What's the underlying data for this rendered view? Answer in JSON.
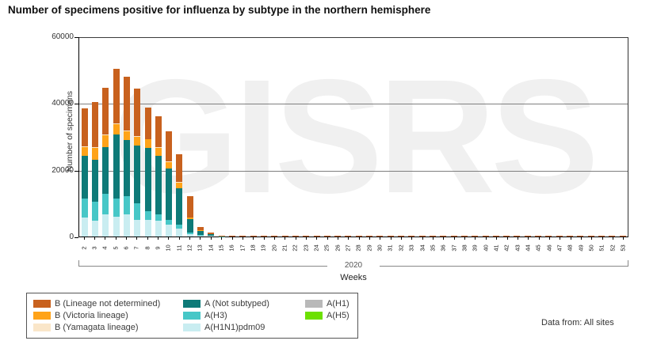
{
  "title": "Number of specimens positive for influenza by subtype in the northern hemisphere",
  "watermark": "GISRS",
  "footer_note": "Data from: All sites",
  "y_axis": {
    "label": "Number of specimens",
    "ticks": [
      0,
      20000,
      40000,
      60000
    ]
  },
  "x_axis": {
    "year": "2020",
    "axis_label": "Weeks"
  },
  "legend": [
    {
      "label": "B (Lineage not determined)",
      "color": "#C8611E",
      "texture": "solid"
    },
    {
      "label": "B (Victoria lineage)",
      "color": "#FFA319",
      "texture": "solid"
    },
    {
      "label": "B (Yamagata lineage)",
      "color": "#FAE6C9",
      "texture": "solid"
    },
    {
      "label": "A (Not subtyped)",
      "color": "#0E7A78",
      "texture": "solid"
    },
    {
      "label": "A(H3)",
      "color": "#47C7C7",
      "texture": "solid"
    },
    {
      "label": "A(H1N1)pdm09",
      "color": "#C9EDF1",
      "texture": "solid"
    },
    {
      "label": "A(H1)",
      "color": "#B9B9B9",
      "texture": "dotted"
    },
    {
      "label": "A(H5)",
      "color": "#6CE000",
      "texture": "solid"
    }
  ],
  "chart_data": {
    "type": "bar",
    "stacked": true,
    "title": "Number of specimens positive for influenza by subtype in the northern hemisphere",
    "xlabel": "Weeks",
    "ylabel": "Number of specimens",
    "ylim": [
      0,
      60000
    ],
    "yticks": [
      0,
      20000,
      40000,
      60000
    ],
    "grid": true,
    "legend_position": "bottom-left",
    "categories": [
      2,
      3,
      4,
      5,
      6,
      7,
      8,
      9,
      10,
      11,
      12,
      13,
      14,
      15,
      16,
      17,
      18,
      19,
      20,
      21,
      22,
      23,
      24,
      25,
      26,
      27,
      28,
      29,
      30,
      31,
      32,
      33,
      34,
      35,
      36,
      37,
      38,
      39,
      40,
      41,
      42,
      43,
      44,
      45,
      46,
      47,
      48,
      49,
      50,
      51,
      52,
      53
    ],
    "series": [
      {
        "name": "A(H1N1)pdm09",
        "color": "#C9EDF1",
        "values": [
          5800,
          4800,
          6700,
          6000,
          6600,
          5100,
          5100,
          4700,
          3600,
          2300,
          650,
          300,
          150,
          30,
          20,
          10,
          10,
          0,
          0,
          0,
          0,
          0,
          0,
          0,
          0,
          0,
          0,
          0,
          0,
          0,
          0,
          0,
          0,
          0,
          0,
          0,
          0,
          0,
          0,
          0,
          0,
          0,
          0,
          0,
          0,
          0,
          0,
          0,
          0,
          0,
          0,
          0
        ]
      },
      {
        "name": "A(H3)",
        "color": "#47C7C7",
        "values": [
          5700,
          5700,
          6000,
          5300,
          5400,
          4800,
          2500,
          2000,
          1400,
          1200,
          450,
          100,
          50,
          10,
          10,
          0,
          0,
          0,
          0,
          0,
          0,
          0,
          0,
          0,
          0,
          0,
          0,
          0,
          0,
          0,
          0,
          0,
          0,
          0,
          0,
          0,
          0,
          0,
          0,
          0,
          0,
          0,
          0,
          0,
          0,
          0,
          0,
          0,
          0,
          0,
          0,
          0
        ]
      },
      {
        "name": "A (Not subtyped)",
        "color": "#0E7A78",
        "values": [
          12600,
          12600,
          14200,
          19400,
          16900,
          17400,
          19000,
          17500,
          15400,
          10900,
          4200,
          1350,
          450,
          110,
          50,
          30,
          20,
          10,
          10,
          0,
          0,
          0,
          0,
          0,
          0,
          0,
          0,
          0,
          0,
          0,
          0,
          0,
          0,
          0,
          0,
          0,
          0,
          0,
          0,
          0,
          0,
          0,
          0,
          0,
          0,
          0,
          0,
          0,
          0,
          0,
          0,
          0
        ]
      },
      {
        "name": "A(H1)",
        "color": "#B9B9B9",
        "values": [
          0,
          0,
          0,
          0,
          0,
          0,
          0,
          0,
          0,
          0,
          0,
          0,
          0,
          0,
          0,
          0,
          0,
          0,
          0,
          0,
          0,
          0,
          0,
          0,
          0,
          0,
          0,
          0,
          0,
          0,
          0,
          0,
          0,
          0,
          0,
          0,
          0,
          0,
          0,
          0,
          0,
          0,
          0,
          0,
          0,
          0,
          0,
          0,
          0,
          0,
          0,
          0
        ]
      },
      {
        "name": "A(H5)",
        "color": "#6CE000",
        "values": [
          0,
          0,
          0,
          0,
          0,
          0,
          0,
          0,
          0,
          0,
          0,
          0,
          0,
          0,
          0,
          0,
          0,
          0,
          0,
          0,
          0,
          0,
          0,
          0,
          0,
          0,
          0,
          0,
          0,
          0,
          0,
          0,
          0,
          0,
          0,
          0,
          0,
          0,
          0,
          0,
          0,
          0,
          0,
          0,
          0,
          0,
          0,
          0,
          0,
          0,
          0,
          0
        ]
      },
      {
        "name": "B (Victoria lineage)",
        "color": "#FFA319",
        "values": [
          2800,
          3400,
          3400,
          3000,
          2600,
          2600,
          2500,
          2450,
          2000,
          1800,
          500,
          100,
          50,
          10,
          10,
          0,
          0,
          0,
          0,
          0,
          0,
          0,
          0,
          0,
          0,
          0,
          0,
          0,
          0,
          0,
          0,
          0,
          0,
          0,
          0,
          0,
          0,
          0,
          0,
          0,
          0,
          0,
          0,
          0,
          0,
          0,
          0,
          0,
          0,
          0,
          0,
          0
        ]
      },
      {
        "name": "B (Yamagata lineage)",
        "color": "#FAE6C9",
        "values": [
          200,
          200,
          200,
          200,
          200,
          200,
          150,
          150,
          100,
          100,
          50,
          0,
          0,
          0,
          0,
          0,
          0,
          0,
          0,
          0,
          0,
          0,
          0,
          0,
          0,
          0,
          0,
          0,
          0,
          0,
          0,
          0,
          0,
          0,
          0,
          0,
          0,
          0,
          0,
          0,
          0,
          0,
          0,
          0,
          0,
          0,
          0,
          0,
          0,
          0,
          0,
          0
        ]
      },
      {
        "name": "B (Lineage not determined)",
        "color": "#C8611E",
        "values": [
          11300,
          13700,
          14200,
          16500,
          16300,
          14200,
          9400,
          9200,
          9000,
          8400,
          6300,
          1050,
          600,
          240,
          160,
          110,
          80,
          70,
          60,
          50,
          50,
          50,
          50,
          50,
          50,
          50,
          50,
          50,
          50,
          50,
          50,
          50,
          50,
          50,
          50,
          50,
          50,
          50,
          50,
          50,
          50,
          50,
          50,
          50,
          50,
          50,
          50,
          50,
          50,
          50,
          50,
          50
        ]
      }
    ]
  }
}
